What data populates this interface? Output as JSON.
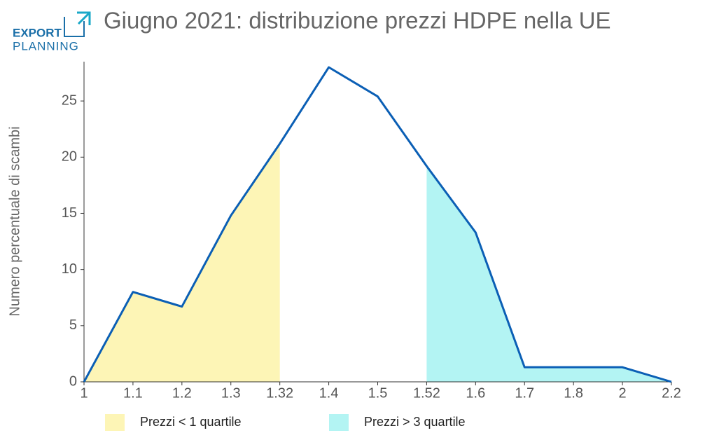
{
  "logo": {
    "line1": "EXPORT",
    "line2": "PLANNING"
  },
  "chart_data": {
    "type": "line",
    "title": "Giugno 2021: distribuzione prezzi HDPE nella UE",
    "y_label": "Numero percentuale di scambi",
    "categories": [
      "1",
      "1.1",
      "1.2",
      "1.3",
      "1.32",
      "1.4",
      "1.5",
      "1.52",
      "1.6",
      "1.7",
      "1.8",
      "2",
      "2.2"
    ],
    "series": [
      {
        "color": "#0b5fb5",
        "values": [
          0,
          8,
          6.7,
          14.8,
          21.2,
          28,
          25.4,
          19.2,
          13.3,
          1.3,
          1.3,
          1.3,
          0
        ]
      }
    ],
    "areas": [
      {
        "name": "Prezzi < 1 quartile",
        "color": "#fdf5b6",
        "values": [
          0,
          8,
          6.7,
          14.8,
          21.2,
          null,
          null,
          null,
          null,
          null,
          null,
          null,
          null
        ]
      },
      {
        "name": "Prezzi > 3 quartile",
        "color": "#b3f4f3",
        "values": [
          null,
          null,
          null,
          null,
          null,
          null,
          null,
          19.2,
          13.3,
          1.3,
          1.3,
          1.3,
          0
        ]
      }
    ],
    "ylim": [
      0,
      28.5
    ],
    "yticks": [
      0,
      5,
      10,
      15,
      20,
      25
    ]
  }
}
